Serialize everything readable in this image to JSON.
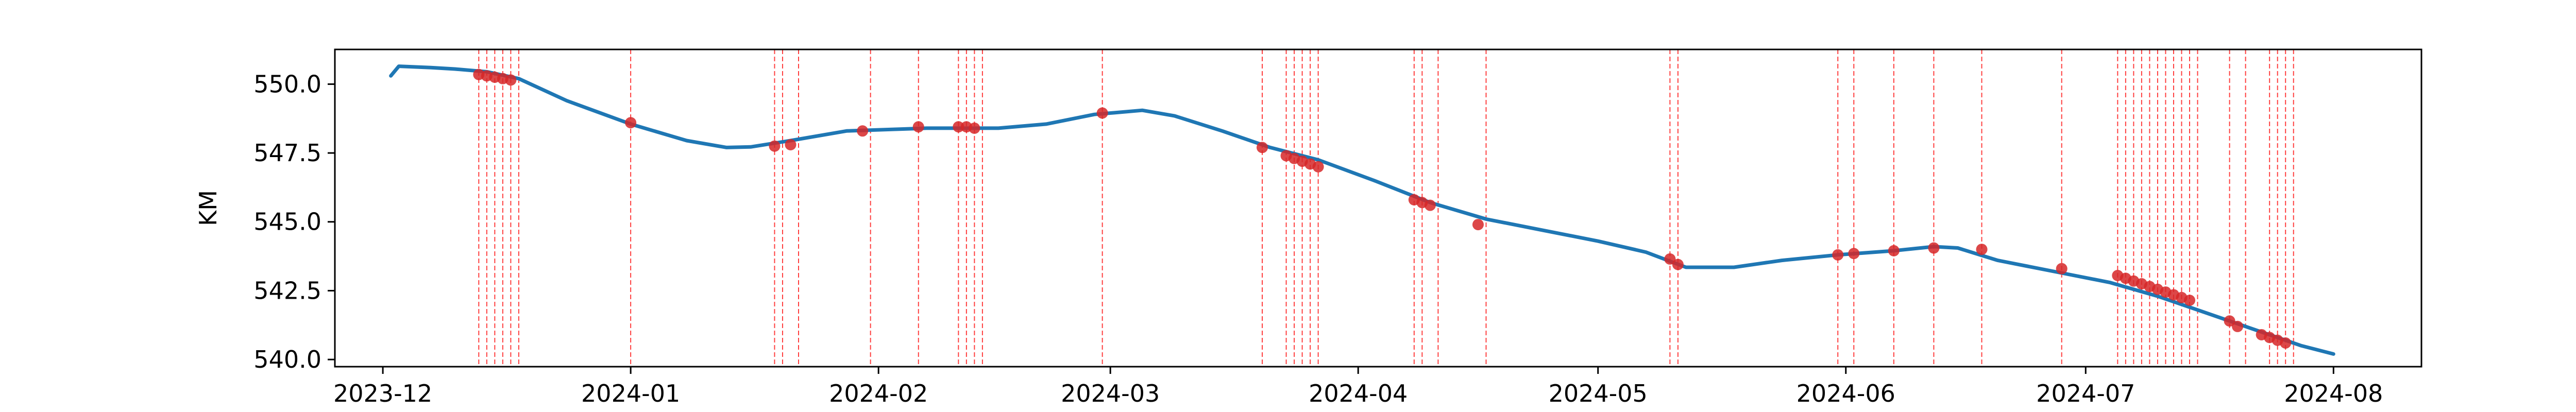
{
  "chart_data": {
    "type": "line",
    "title": "",
    "xlabel": "",
    "ylabel": "KM",
    "x_type": "date",
    "xlim": [
      "2023-11-25",
      "2024-08-12"
    ],
    "ylim": [
      539.74,
      551.26
    ],
    "xticks": [
      {
        "date": "2023-12-01",
        "label": "2023-12"
      },
      {
        "date": "2024-01-01",
        "label": "2024-01"
      },
      {
        "date": "2024-02-01",
        "label": "2024-02"
      },
      {
        "date": "2024-03-01",
        "label": "2024-03"
      },
      {
        "date": "2024-04-01",
        "label": "2024-04"
      },
      {
        "date": "2024-05-01",
        "label": "2024-05"
      },
      {
        "date": "2024-06-01",
        "label": "2024-06"
      },
      {
        "date": "2024-07-01",
        "label": "2024-07"
      },
      {
        "date": "2024-08-01",
        "label": "2024-08"
      }
    ],
    "yticks": [
      {
        "value": 540.0,
        "label": "540.0"
      },
      {
        "value": 542.5,
        "label": "542.5"
      },
      {
        "value": 545.0,
        "label": "545.0"
      },
      {
        "value": 547.5,
        "label": "547.5"
      },
      {
        "value": 550.0,
        "label": "550.0"
      }
    ],
    "grid": false,
    "colors": {
      "line": "#1f77b4",
      "marker": "#d62728",
      "vline": "#ff0000"
    },
    "series": [
      {
        "x": [
          "2023-12-02",
          "2023-12-03",
          "2023-12-07",
          "2023-12-10",
          "2023-12-14",
          "2023-12-18",
          "2023-12-24",
          "2024-01-01",
          "2024-01-08",
          "2024-01-13",
          "2024-01-16",
          "2024-01-21",
          "2024-01-28",
          "2024-02-07",
          "2024-02-16",
          "2024-02-22",
          "2024-02-28",
          "2024-03-05",
          "2024-03-09",
          "2024-03-15",
          "2024-03-21",
          "2024-03-27",
          "2024-04-03",
          "2024-04-10",
          "2024-04-17",
          "2024-04-24",
          "2024-05-01",
          "2024-05-07",
          "2024-05-12",
          "2024-05-18",
          "2024-05-24",
          "2024-05-31",
          "2024-06-07",
          "2024-06-12",
          "2024-06-15",
          "2024-06-20",
          "2024-06-27",
          "2024-07-04",
          "2024-07-10",
          "2024-07-15",
          "2024-07-22",
          "2024-07-28",
          "2024-08-01"
        ],
        "y": [
          550.3,
          550.65,
          550.6,
          550.55,
          550.45,
          550.2,
          549.4,
          548.55,
          547.95,
          547.7,
          547.72,
          547.95,
          548.3,
          548.4,
          548.4,
          548.55,
          548.9,
          549.05,
          548.85,
          548.3,
          547.7,
          547.25,
          546.5,
          545.7,
          545.1,
          544.7,
          544.3,
          543.9,
          543.35,
          543.35,
          543.6,
          543.8,
          543.95,
          544.1,
          544.05,
          543.6,
          543.2,
          542.8,
          542.3,
          541.8,
          541.1,
          540.5,
          540.2
        ]
      }
    ],
    "markers": {
      "x": [
        "2023-12-13",
        "2023-12-14",
        "2023-12-15",
        "2023-12-16",
        "2023-12-17",
        "2024-01-01",
        "2024-01-19",
        "2024-01-21",
        "2024-01-30",
        "2024-02-06",
        "2024-02-11",
        "2024-02-12",
        "2024-02-13",
        "2024-02-29",
        "2024-03-20",
        "2024-03-23",
        "2024-03-24",
        "2024-03-25",
        "2024-03-26",
        "2024-03-27",
        "2024-04-08",
        "2024-04-09",
        "2024-04-10",
        "2024-04-16",
        "2024-05-10",
        "2024-05-11",
        "2024-05-31",
        "2024-06-02",
        "2024-06-07",
        "2024-06-12",
        "2024-06-18",
        "2024-06-28",
        "2024-07-05",
        "2024-07-06",
        "2024-07-07",
        "2024-07-08",
        "2024-07-09",
        "2024-07-10",
        "2024-07-11",
        "2024-07-12",
        "2024-07-13",
        "2024-07-14",
        "2024-07-19",
        "2024-07-20",
        "2024-07-23",
        "2024-07-24",
        "2024-07-25",
        "2024-07-26"
      ],
      "y": [
        550.35,
        550.3,
        550.25,
        550.2,
        550.15,
        548.6,
        547.75,
        547.8,
        548.3,
        548.45,
        548.45,
        548.45,
        548.4,
        548.95,
        547.7,
        547.4,
        547.3,
        547.2,
        547.1,
        547.0,
        545.8,
        545.7,
        545.6,
        544.9,
        543.65,
        543.45,
        543.8,
        543.85,
        543.95,
        544.05,
        544.0,
        543.3,
        543.05,
        542.95,
        542.85,
        542.75,
        542.65,
        542.55,
        542.45,
        542.35,
        542.25,
        542.15,
        541.4,
        541.2,
        540.9,
        540.8,
        540.7,
        540.6
      ]
    },
    "vlines": [
      "2023-12-13",
      "2023-12-14",
      "2023-12-15",
      "2023-12-16",
      "2023-12-17",
      "2023-12-18",
      "2024-01-01",
      "2024-01-19",
      "2024-01-20",
      "2024-01-22",
      "2024-01-31",
      "2024-02-06",
      "2024-02-11",
      "2024-02-12",
      "2024-02-13",
      "2024-02-14",
      "2024-02-29",
      "2024-03-20",
      "2024-03-23",
      "2024-03-24",
      "2024-03-25",
      "2024-03-26",
      "2024-03-27",
      "2024-04-08",
      "2024-04-09",
      "2024-04-11",
      "2024-04-17",
      "2024-05-10",
      "2024-05-11",
      "2024-05-31",
      "2024-06-02",
      "2024-06-07",
      "2024-06-12",
      "2024-06-18",
      "2024-06-28",
      "2024-07-05",
      "2024-07-06",
      "2024-07-07",
      "2024-07-08",
      "2024-07-09",
      "2024-07-10",
      "2024-07-11",
      "2024-07-12",
      "2024-07-13",
      "2024-07-14",
      "2024-07-15",
      "2024-07-19",
      "2024-07-21",
      "2024-07-24",
      "2024-07-25",
      "2024-07-26",
      "2024-07-27"
    ]
  }
}
